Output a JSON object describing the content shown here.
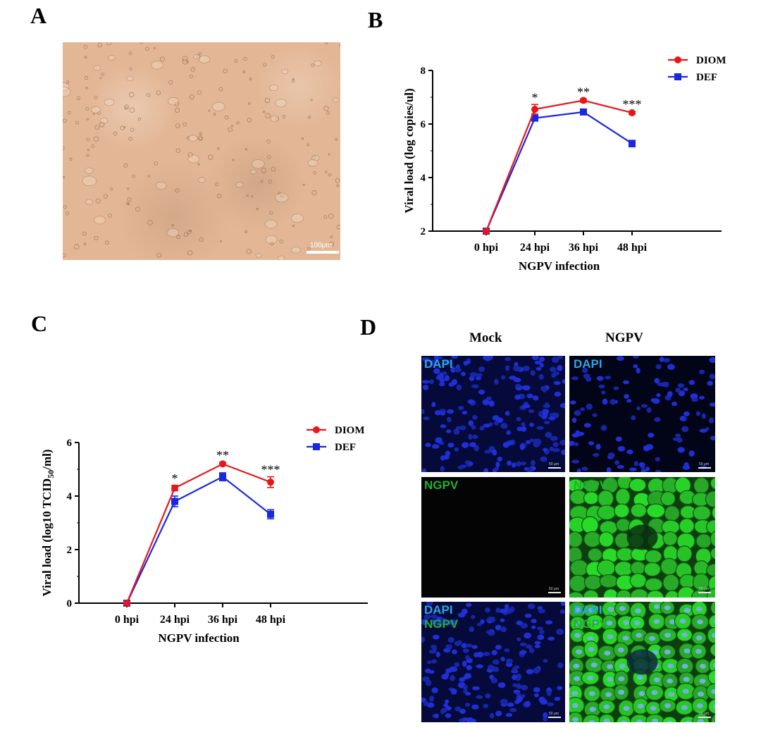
{
  "panels": {
    "A": {
      "letter": "A",
      "scale_bar": "100μm"
    },
    "B": {
      "letter": "B"
    },
    "C": {
      "letter": "C"
    },
    "D": {
      "letter": "D",
      "columns": [
        "Mock",
        "NGPV"
      ],
      "rows": [
        {
          "labels": [
            "DAPI"
          ]
        },
        {
          "labels": [
            "NGPV"
          ]
        },
        {
          "labels": [
            "DAPI",
            "NGPV"
          ]
        }
      ],
      "scale_text": "50 μm"
    }
  },
  "colors": {
    "DIOM": "#e8161b",
    "DEF": "#1a27e0",
    "DAPI_label": "#2aa8e6",
    "NGPV_label": "#22b030"
  },
  "chart_data": [
    {
      "id": "B",
      "type": "line",
      "categories": [
        "0 hpi",
        "24 hpi",
        "36 hpi",
        "48 hpi"
      ],
      "series": [
        {
          "name": "DIOM",
          "values": [
            2.0,
            6.55,
            6.88,
            6.42
          ],
          "errors": [
            0.05,
            0.18,
            0.06,
            0.05
          ]
        },
        {
          "name": "DEF",
          "values": [
            2.0,
            6.22,
            6.45,
            5.27
          ],
          "errors": [
            0.05,
            0.07,
            0.06,
            0.12
          ]
        }
      ],
      "significance": [
        "",
        "*",
        "**",
        "***"
      ],
      "xlabel": "NGPV infection",
      "ylabel": "Viral load (log copies/ul)",
      "ylim": [
        2,
        8
      ],
      "yticks": [
        "2",
        "4",
        "6",
        "8"
      ],
      "legend": "top-right"
    },
    {
      "id": "C",
      "type": "line",
      "categories": [
        "0 hpi",
        "24 hpi",
        "36 hpi",
        "48 hpi"
      ],
      "series": [
        {
          "name": "DIOM",
          "values": [
            0.0,
            4.3,
            5.2,
            4.52
          ],
          "errors": [
            0.05,
            0.1,
            0.06,
            0.2
          ]
        },
        {
          "name": "DEF",
          "values": [
            0.0,
            3.8,
            4.72,
            3.32
          ],
          "errors": [
            0.05,
            0.2,
            0.15,
            0.17
          ]
        }
      ],
      "significance": [
        "",
        "*",
        "**",
        "***"
      ],
      "xlabel": "NGPV infection",
      "ylabel_main": "Viral load (log10 TCID",
      "ylabel_sub": "50",
      "ylabel_end": "/ml)",
      "ylim": [
        0,
        6
      ],
      "yticks": [
        "0",
        "2",
        "4",
        "6"
      ],
      "legend": "top-right"
    }
  ]
}
